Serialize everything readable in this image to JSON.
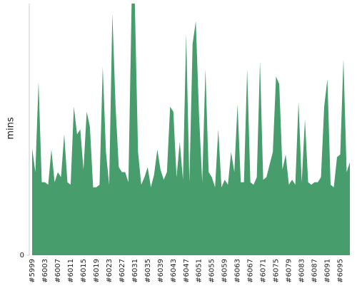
{
  "chart_data": {
    "type": "area",
    "y_label": "mins",
    "color": "#489d6c",
    "categories": [
      "#5999",
      null,
      null,
      null,
      "#6003",
      null,
      null,
      null,
      "#6007",
      null,
      null,
      null,
      "#6011",
      null,
      null,
      null,
      "#6015",
      null,
      null,
      null,
      "#6019",
      null,
      null,
      null,
      "#6023",
      null,
      null,
      null,
      "#6027",
      null,
      null,
      null,
      "#6031",
      null,
      null,
      null,
      "#6035",
      null,
      null,
      null,
      "#6039",
      null,
      null,
      null,
      "#6043",
      null,
      null,
      null,
      "#6047",
      null,
      null,
      null,
      "#6051",
      null,
      null,
      null,
      "#6055",
      null,
      null,
      null,
      "#6059",
      null,
      null,
      null,
      "#6063",
      null,
      null,
      null,
      "#6067",
      null,
      null,
      null,
      "#6071",
      null,
      null,
      null,
      "#6075",
      null,
      null,
      null,
      "#6079",
      null,
      null,
      null,
      "#6083",
      null,
      null,
      null,
      "#6087",
      null,
      null,
      null,
      "#6091",
      null,
      null,
      null,
      "#6095",
      null,
      null,
      null
    ],
    "values": [
      42.5,
      33,
      69,
      29,
      29,
      28,
      42,
      29,
      33,
      31,
      48,
      29,
      28,
      59,
      48,
      50,
      34,
      57,
      51,
      27,
      27,
      28,
      75,
      41,
      28,
      96,
      59,
      35,
      33,
      33,
      29,
      100,
      100,
      41,
      28,
      31,
      35,
      27,
      32,
      42,
      34,
      30,
      33,
      59,
      57,
      31,
      45,
      30,
      88,
      29,
      84,
      93,
      56,
      29,
      74,
      33,
      31,
      27,
      50,
      27,
      30,
      28,
      41,
      33,
      60,
      29,
      29,
      74,
      29,
      28,
      31,
      77,
      30,
      31,
      36,
      41,
      71,
      68,
      34,
      40,
      28,
      30,
      28,
      61,
      29,
      54,
      29,
      28,
      29,
      29,
      31,
      59,
      70,
      28,
      27,
      39,
      40,
      78,
      33,
      37
    ],
    "ylim": [
      0,
      100
    ],
    "yticks": [
      0
    ]
  }
}
